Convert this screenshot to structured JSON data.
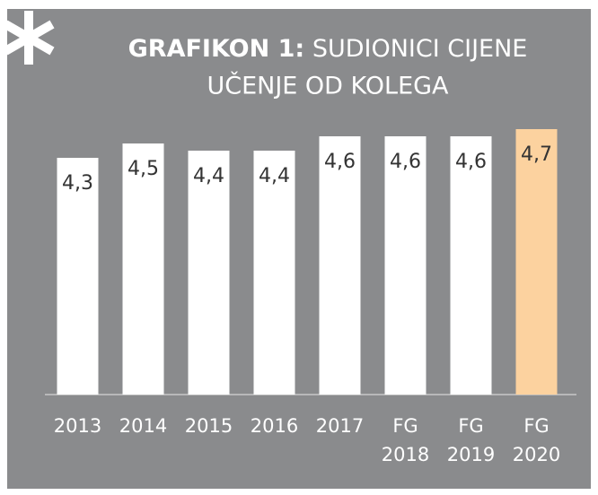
{
  "chart_data": {
    "type": "bar",
    "title_label": "GRAFIKON 1:",
    "title": [
      "SUDIONICI CIJENE",
      "UČENJE OD KOLEGA"
    ],
    "categories": [
      "2013",
      "2014",
      "2015",
      "2016",
      "2017",
      "FG 2018",
      "FG 2019",
      "FG 2020"
    ],
    "values": [
      4.3,
      4.5,
      4.4,
      4.4,
      4.6,
      4.6,
      4.6,
      4.7
    ],
    "value_labels": [
      "4,3",
      "4,5",
      "4,4",
      "4,4",
      "4,6",
      "4,6",
      "4,6",
      "4,7"
    ],
    "colors": [
      "#ffffff",
      "#ffffff",
      "#ffffff",
      "#ffffff",
      "#ffffff",
      "#ffffff",
      "#ffffff",
      "#fcd29f"
    ],
    "ylim": [
      1,
      5
    ]
  }
}
